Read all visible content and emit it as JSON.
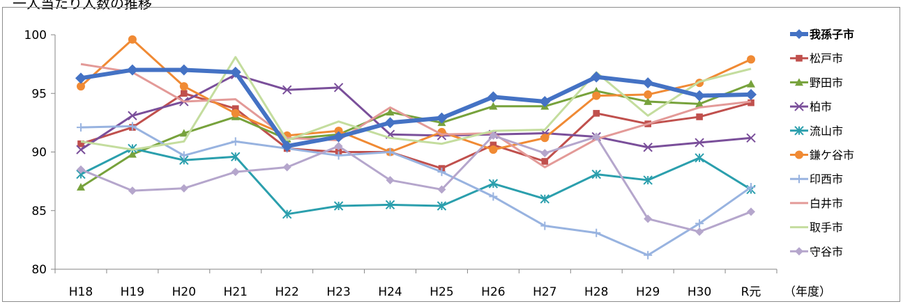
{
  "title": "一人当たり人数の推移",
  "chart_data": {
    "type": "line",
    "categories": [
      "H18",
      "H19",
      "H20",
      "H21",
      "H22",
      "H23",
      "H24",
      "H25",
      "H26",
      "H27",
      "H28",
      "H29",
      "H30",
      "R元"
    ],
    "xlabel": "（年度）",
    "ylabel": "",
    "ylim": [
      80,
      100
    ],
    "yticks": [
      80,
      85,
      90,
      95,
      100
    ],
    "grid": false,
    "legend_position": "right",
    "series": [
      {
        "name": "我孫子市",
        "color": "#4472c4",
        "marker": "diamond",
        "bold": true,
        "values": [
          96.3,
          97.0,
          97.0,
          96.8,
          90.5,
          91.3,
          92.5,
          92.9,
          94.7,
          94.3,
          96.4,
          95.9,
          94.8,
          94.9
        ]
      },
      {
        "name": "松戸市",
        "color": "#c0504d",
        "marker": "square",
        "values": [
          90.7,
          92.1,
          95.0,
          93.7,
          90.3,
          90.0,
          90.0,
          88.6,
          90.6,
          89.2,
          93.3,
          92.4,
          93.0,
          94.2
        ]
      },
      {
        "name": "野田市",
        "color": "#77a23c",
        "marker": "triangle",
        "values": [
          87.0,
          89.8,
          91.6,
          93.0,
          91.1,
          91.5,
          93.4,
          92.5,
          93.9,
          93.9,
          95.2,
          94.3,
          94.1,
          95.8
        ]
      },
      {
        "name": "柏市",
        "color": "#7a4f9a",
        "marker": "x",
        "values": [
          90.2,
          93.1,
          94.3,
          96.6,
          95.3,
          95.5,
          91.5,
          91.4,
          91.5,
          91.6,
          91.3,
          90.4,
          90.8,
          91.2
        ]
      },
      {
        "name": "流山市",
        "color": "#2b9fad",
        "marker": "asterisk",
        "values": [
          88.1,
          90.3,
          89.3,
          89.6,
          84.7,
          85.4,
          85.5,
          85.4,
          87.3,
          86.0,
          88.1,
          87.6,
          89.5,
          86.8
        ]
      },
      {
        "name": "鎌ケ谷市",
        "color": "#f08a34",
        "marker": "circle",
        "values": [
          95.6,
          99.6,
          95.6,
          93.3,
          91.4,
          91.8,
          90.0,
          91.7,
          90.2,
          91.2,
          94.8,
          94.9,
          95.9,
          97.9
        ]
      },
      {
        "name": "印西市",
        "color": "#98b3e0",
        "marker": "plus",
        "values": [
          92.1,
          92.2,
          89.7,
          90.9,
          90.3,
          89.7,
          90.0,
          88.3,
          86.2,
          83.7,
          83.1,
          81.2,
          83.9,
          87.0
        ]
      },
      {
        "name": "白井市",
        "color": "#e39a98",
        "marker": "none",
        "values": [
          97.5,
          96.8,
          94.3,
          94.5,
          91.2,
          91.0,
          93.8,
          91.5,
          91.6,
          88.7,
          91.1,
          92.4,
          93.8,
          94.3
        ]
      },
      {
        "name": "取手市",
        "color": "#c4dd9e",
        "marker": "none",
        "values": [
          90.9,
          90.2,
          90.9,
          98.1,
          91.0,
          92.6,
          91.2,
          90.7,
          91.8,
          91.9,
          96.8,
          93.1,
          96.0,
          97.1
        ]
      },
      {
        "name": "守谷市",
        "color": "#b5a6cc",
        "marker": "diamond",
        "values": [
          88.5,
          86.7,
          86.9,
          88.3,
          88.7,
          90.5,
          87.6,
          86.8,
          91.4,
          89.9,
          91.3,
          84.3,
          83.2,
          84.9
        ]
      }
    ]
  }
}
